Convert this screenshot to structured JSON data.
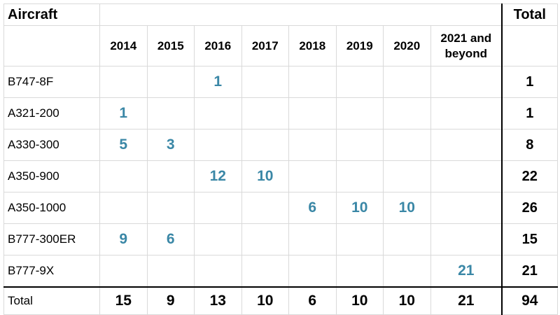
{
  "header": {
    "aircraft_label": "Aircraft",
    "total_label": "Total",
    "years": [
      "2014",
      "2015",
      "2016",
      "2017",
      "2018",
      "2019",
      "2020",
      "2021 and beyond"
    ]
  },
  "rows": [
    {
      "aircraft": "B747-8F",
      "cells": [
        "",
        "",
        "1",
        "",
        "",
        "",
        "",
        ""
      ],
      "total": "1"
    },
    {
      "aircraft": "A321-200",
      "cells": [
        "1",
        "",
        "",
        "",
        "",
        "",
        "",
        ""
      ],
      "total": "1"
    },
    {
      "aircraft": "A330-300",
      "cells": [
        "5",
        "3",
        "",
        "",
        "",
        "",
        "",
        ""
      ],
      "total": "8"
    },
    {
      "aircraft": "A350-900",
      "cells": [
        "",
        "",
        "12",
        "10",
        "",
        "",
        "",
        ""
      ],
      "total": "22"
    },
    {
      "aircraft": "A350-1000",
      "cells": [
        "",
        "",
        "",
        "",
        "6",
        "10",
        "10",
        ""
      ],
      "total": "26"
    },
    {
      "aircraft": "B777-300ER",
      "cells": [
        "9",
        "6",
        "",
        "",
        "",
        "",
        "",
        ""
      ],
      "total": "15"
    },
    {
      "aircraft": "B777-9X",
      "cells": [
        "",
        "",
        "",
        "",
        "",
        "",
        "",
        "21"
      ],
      "total": "21"
    }
  ],
  "totals": {
    "label": "Total",
    "cells": [
      "15",
      "9",
      "13",
      "10",
      "6",
      "10",
      "10",
      "21"
    ],
    "grand_total": "94"
  },
  "colors": {
    "value_accent": "#3a87a6",
    "grid_line": "#d9d9d9"
  }
}
